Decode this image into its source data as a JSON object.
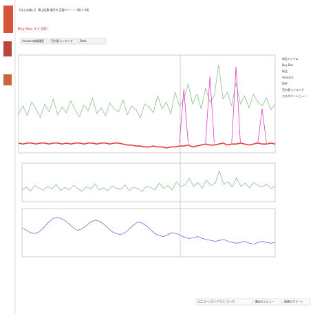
{
  "header": {
    "title": "【まとめ買い】 華山紀豊 瀬戸内 芳醇アソート 3袋 x 2袋",
    "price": "Buy Box: ¥ 2,340"
  },
  "tabs": [
    "Amazon価格履歴",
    "売れ筋ランキング",
    "Data"
  ],
  "legend": [
    "新品アイテム",
    "Buy Box",
    "新品",
    "Amazon",
    "FBA",
    "売れ筋ランキング",
    "カスタマーレビュー"
  ],
  "buttons": [
    "ユニコーンストアランキング",
    "ランク",
    "最近のレビュー",
    "価格のアラート"
  ],
  "chart_data": [
    {
      "type": "line",
      "ylim": [
        0,
        100
      ],
      "series": [
        {
          "name": "売れ筋ランキング",
          "color": "#7db87d",
          "values": [
            40,
            48,
            38,
            52,
            45,
            36,
            50,
            42,
            55,
            39,
            47,
            41,
            53,
            44,
            37,
            49,
            43,
            56,
            40,
            46,
            38,
            51,
            45,
            42,
            54,
            39,
            48,
            44,
            36,
            50,
            47,
            41,
            58,
            45,
            52,
            40,
            62,
            48,
            55,
            70,
            50,
            60,
            45,
            66,
            52,
            58,
            90,
            55,
            62,
            48,
            72,
            50,
            58,
            46,
            60,
            52,
            48,
            56,
            44,
            50
          ]
        },
        {
          "name": "新品",
          "color": "#e53a3a",
          "values": [
            10,
            9,
            10,
            10,
            9,
            10,
            10,
            9,
            10,
            10,
            9,
            10,
            9,
            10,
            10,
            9,
            10,
            10,
            9,
            10,
            10,
            9,
            10,
            10,
            9,
            8,
            8,
            7,
            7,
            6,
            6,
            7,
            6,
            6,
            5,
            6,
            6,
            7,
            7,
            8,
            6,
            7,
            8,
            9,
            8,
            8,
            9,
            10,
            8,
            9,
            9,
            10,
            9,
            8,
            9,
            10,
            9,
            9,
            10,
            9
          ]
        },
        {
          "name": "Buy Box",
          "color": "#e020c8",
          "values": [
            null,
            null,
            null,
            null,
            null,
            null,
            null,
            null,
            null,
            null,
            null,
            null,
            null,
            null,
            null,
            null,
            null,
            null,
            null,
            null,
            null,
            null,
            null,
            null,
            null,
            null,
            null,
            null,
            null,
            null,
            null,
            null,
            null,
            null,
            null,
            null,
            null,
            10,
            65,
            10,
            null,
            null,
            null,
            10,
            78,
            10,
            null,
            null,
            null,
            10,
            88,
            10,
            null,
            null,
            null,
            10,
            45,
            10,
            null,
            null
          ]
        }
      ]
    },
    {
      "type": "line",
      "ylim": [
        0,
        100
      ],
      "series": [
        {
          "name": "カスタマーレビュー",
          "color": "#7db87d",
          "values": [
            30,
            38,
            28,
            42,
            35,
            30,
            40,
            33,
            45,
            29,
            37,
            31,
            43,
            34,
            27,
            39,
            33,
            46,
            30,
            36,
            28,
            41,
            35,
            32,
            44,
            29,
            38,
            34,
            26,
            40,
            37,
            31,
            48,
            35,
            42,
            30,
            52,
            38,
            45,
            60,
            40,
            50,
            35,
            56,
            42,
            48,
            80,
            45,
            52,
            38,
            62,
            40,
            48,
            36,
            50,
            42,
            38,
            46,
            34,
            40
          ]
        }
      ]
    },
    {
      "type": "line",
      "ylim": [
        0,
        100
      ],
      "series": [
        {
          "name": "評価",
          "color": "#5a5ad0",
          "values": [
            60,
            55,
            50,
            48,
            52,
            60,
            70,
            78,
            82,
            80,
            75,
            68,
            60,
            55,
            58,
            65,
            72,
            76,
            74,
            68,
            60,
            52,
            48,
            46,
            50,
            58,
            66,
            72,
            70,
            64,
            56,
            48,
            44,
            42,
            46,
            50,
            48,
            44,
            40,
            38,
            40,
            42,
            38,
            36,
            34,
            32,
            34,
            36,
            32,
            30,
            28,
            30,
            32,
            28,
            26,
            30,
            32,
            30,
            28,
            30
          ]
        }
      ]
    }
  ]
}
